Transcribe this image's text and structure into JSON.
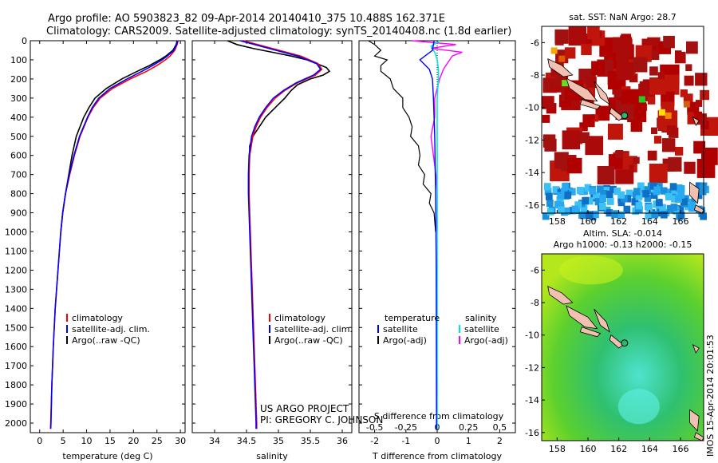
{
  "header": {
    "line1": "Argo profile: AO 5903823_82 09-Apr-2014 20140410_375 10.488S 162.371E",
    "line2": "Climatology: CARS2009. Satellite-adjusted climatology: synTS_20140408.nc (1.8d earlier)"
  },
  "credits": {
    "project": "US ARGO PROJECT",
    "pi": "PI: GREGORY C. JOHNSON"
  },
  "footer": {
    "stamp": "IMOS 15-Apr-2014 20:01:53"
  },
  "colors": {
    "climatology": "#ff0000",
    "satellite": "#0000ff",
    "argo": "#000000",
    "sal_satellite": "#00e5e5",
    "sal_argo": "#ff00ff",
    "sla_land": "#f2c0b0"
  },
  "chart_data": [
    {
      "type": "line",
      "name": "temperature profile",
      "xlabel": "temperature (deg C)",
      "xlim": [
        -2,
        31
      ],
      "xticks": [
        "0",
        "5",
        "10",
        "15",
        "20",
        "25",
        "30"
      ],
      "ylim": [
        2050,
        0
      ],
      "yticks": [
        "0",
        "100",
        "200",
        "300",
        "400",
        "500",
        "600",
        "700",
        "800",
        "900",
        "1000",
        "1100",
        "1200",
        "1300",
        "1400",
        "1500",
        "1600",
        "1700",
        "1800",
        "1900",
        "2000"
      ],
      "legend": [
        "climatology",
        "satellite-adj. clim.",
        "Argo(..raw -QC)"
      ],
      "series": [
        {
          "name": "climatology",
          "depth": [
            0,
            20,
            50,
            80,
            100,
            130,
            160,
            200,
            250,
            300,
            350,
            400,
            500,
            600,
            700,
            800,
            900,
            1000,
            1200,
            1400,
            1600,
            1800,
            2000,
            2030
          ],
          "values": [
            29.5,
            29.3,
            28.8,
            27.8,
            26.8,
            25,
            22.8,
            19.3,
            15.5,
            12.9,
            11.4,
            10.3,
            8.6,
            7.4,
            6.4,
            5.5,
            4.9,
            4.5,
            3.9,
            3.3,
            2.9,
            2.6,
            2.35,
            2.3
          ]
        },
        {
          "name": "satellite-adj. clim.",
          "depth": [
            0,
            20,
            50,
            80,
            100,
            130,
            160,
            200,
            250,
            300,
            350,
            400,
            500,
            600,
            700,
            800,
            900,
            1000,
            1200,
            1400,
            1600,
            1800,
            2000,
            2030
          ],
          "values": [
            29.4,
            29.2,
            28.6,
            27.2,
            26.1,
            24.1,
            21.8,
            18.6,
            15,
            12.6,
            11.2,
            10.2,
            8.5,
            7.3,
            6.3,
            5.5,
            4.9,
            4.5,
            3.9,
            3.3,
            2.9,
            2.6,
            2.4,
            2.35
          ]
        },
        {
          "name": "Argo(..raw -QC)",
          "depth": [
            0,
            20,
            50,
            80,
            100,
            130,
            160,
            200,
            250,
            300,
            350,
            400,
            500,
            600,
            700,
            800,
            900,
            1000
          ],
          "values": [
            29.3,
            29.1,
            28.4,
            26.9,
            25.6,
            23.4,
            20.8,
            17.5,
            14.2,
            11.8,
            10.5,
            9.4,
            7.8,
            6.9,
            6.2,
            5.5,
            4.9,
            4.5
          ]
        }
      ]
    },
    {
      "type": "line",
      "name": "salinity profile",
      "xlabel": "salinity",
      "xlim": [
        33.65,
        36.15
      ],
      "xticks": [
        "34",
        "34.5",
        "35",
        "35.5",
        "36"
      ],
      "ylim": [
        2050,
        0
      ],
      "legend": [
        "climatology",
        "satellite-adj. clim.",
        "Argo(..raw -QC)"
      ],
      "series": [
        {
          "name": "climatology",
          "depth": [
            0,
            40,
            80,
            120,
            150,
            180,
            220,
            260,
            300,
            350,
            400,
            450,
            500,
            600,
            700,
            800,
            900,
            1000,
            1200,
            1400,
            1600,
            1800,
            2000,
            2030
          ],
          "values": [
            34.45,
            34.9,
            35.35,
            35.62,
            35.68,
            35.58,
            35.3,
            35.1,
            34.95,
            34.82,
            34.72,
            34.65,
            34.6,
            34.55,
            34.54,
            34.54,
            34.55,
            34.56,
            34.58,
            34.6,
            34.62,
            34.64,
            34.66,
            34.66
          ]
        },
        {
          "name": "satellite-adj. clim.",
          "depth": [
            0,
            40,
            80,
            120,
            150,
            180,
            220,
            260,
            300,
            350,
            400,
            450,
            500,
            600,
            700,
            800,
            900,
            1000,
            1200,
            1400,
            1600,
            1800,
            2000,
            2030
          ],
          "values": [
            34.4,
            34.85,
            35.3,
            35.6,
            35.66,
            35.55,
            35.28,
            35.08,
            34.92,
            34.8,
            34.7,
            34.63,
            34.58,
            34.54,
            34.53,
            34.53,
            34.54,
            34.55,
            34.57,
            34.59,
            34.61,
            34.63,
            34.65,
            34.65
          ]
        },
        {
          "name": "Argo(..raw -QC)",
          "depth": [
            0,
            20,
            40,
            60,
            80,
            100,
            120,
            140,
            160,
            180,
            200,
            230,
            260,
            300,
            350,
            400,
            450,
            500,
            550,
            600,
            650,
            700
          ],
          "values": [
            34.2,
            34.35,
            34.6,
            34.9,
            35.2,
            35.45,
            35.6,
            35.75,
            35.8,
            35.7,
            35.5,
            35.3,
            35.2,
            35.1,
            34.95,
            34.8,
            34.7,
            34.6,
            34.55,
            34.55,
            34.54,
            34.54
          ]
        }
      ]
    },
    {
      "type": "line",
      "name": "difference from climatology",
      "xlabel": "T difference from climatology",
      "x2label": "S difference from climatology",
      "xlim": [
        -2.5,
        2.5
      ],
      "xticks": [
        "-2",
        "-1",
        "0",
        "1",
        "2"
      ],
      "x2ticks": [
        "-0.5",
        "-0.25",
        "0",
        "0.25",
        "0.5"
      ],
      "x2lim": [
        -0.625,
        0.625
      ],
      "ylim": [
        2050,
        0
      ],
      "legend_titles": [
        "temperature",
        "salinity"
      ],
      "legend": [
        "satellite",
        "Argo(-adj)",
        "satellite",
        "Argo(-adj)"
      ],
      "series": [
        {
          "name": "T satellite",
          "depth": [
            0,
            50,
            100,
            150,
            200,
            300,
            500,
            800,
            1200,
            2030
          ],
          "values": [
            -0.1,
            -0.15,
            -0.55,
            -0.25,
            -0.15,
            -0.12,
            -0.08,
            -0.05,
            -0.03,
            -0.02
          ]
        },
        {
          "name": "T Argo(-adj)",
          "depth": [
            0,
            20,
            50,
            80,
            100,
            130,
            160,
            200,
            250,
            300,
            350,
            400,
            450,
            500,
            550,
            600,
            650,
            700,
            750,
            800,
            850,
            900,
            1000
          ],
          "values": [
            -2.2,
            -2,
            -1.8,
            -2,
            -1.6,
            -1.8,
            -1.8,
            -1.5,
            -1.4,
            -1.1,
            -1.1,
            -0.9,
            -0.8,
            -0.85,
            -0.6,
            -0.55,
            -0.6,
            -0.4,
            -0.45,
            -0.2,
            -0.25,
            -0.1,
            -0.05
          ]
        },
        {
          "name": "S satellite",
          "depth": [
            0,
            30,
            60,
            100,
            150,
            200,
            300,
            500,
            800,
            1200,
            2030
          ],
          "values": [
            0.02,
            -0.05,
            -0.02,
            0,
            0.01,
            0.01,
            0,
            0,
            0,
            0,
            0
          ]
        },
        {
          "name": "S Argo(-adj)",
          "depth": [
            0,
            20,
            40,
            60,
            80,
            100,
            120,
            150,
            200,
            250,
            300,
            400,
            500,
            600,
            700,
            800,
            900,
            1000
          ],
          "values": [
            -0.2,
            0.15,
            -0.05,
            0.2,
            0.12,
            0.1,
            0.08,
            0.05,
            0.02,
            0,
            -0.02,
            -0.02,
            -0.05,
            -0.03,
            -0.01,
            0,
            0,
            0
          ]
        }
      ]
    },
    {
      "type": "heatmap",
      "name": "SST map",
      "title": "sat. SST: NaN Argo: 28.7",
      "xticks": [
        "158",
        "160",
        "162",
        "164",
        "166"
      ],
      "yticks": [
        "-6",
        "-8",
        "-10",
        "-12",
        "-14",
        "-16"
      ],
      "xlim": [
        157,
        167.5
      ],
      "ylim": [
        -16.5,
        -5
      ]
    },
    {
      "type": "heatmap",
      "name": "SLA map",
      "title": "Altim. SLA: -0.014",
      "subtitle": "Argo h1000: -0.13 h2000: -0.15",
      "xticks": [
        "158",
        "160",
        "162",
        "164",
        "166"
      ],
      "yticks": [
        "-6",
        "-8",
        "-10",
        "-12",
        "-14",
        "-16"
      ],
      "xlim": [
        157,
        167.5
      ],
      "ylim": [
        -16.5,
        -5
      ]
    }
  ]
}
